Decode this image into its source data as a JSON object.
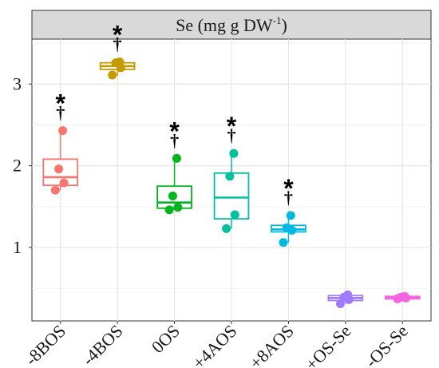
{
  "chart_data": {
    "type": "box",
    "title": "Se (mg g DW-1)",
    "title_main": "Se (mg g DW",
    "title_sup": "-1",
    "title_end": ")",
    "xlabel": "",
    "ylabel": "",
    "ylim": [
      0.1,
      3.55
    ],
    "yticks": [
      1,
      2,
      3
    ],
    "grid": true,
    "legend": "none",
    "significance_symbols": {
      "star": "*",
      "dagger": "†"
    },
    "categories": [
      "-8BOS",
      "-4BOS",
      "0OS",
      "+4AOS",
      "+8AOS",
      "+OS-Se",
      "-OS-Se"
    ],
    "series": [
      {
        "category": "-8BOS",
        "color": "#F8766D",
        "q1": 1.76,
        "median": 1.86,
        "q3": 2.08,
        "whisker_low": 1.7,
        "whisker_high": 2.43,
        "points": [
          1.7,
          1.79,
          1.96,
          2.43
        ],
        "star": true,
        "dagger": true
      },
      {
        "category": "-4BOS",
        "color": "#C49A00",
        "q1": 3.18,
        "median": 3.22,
        "q3": 3.26,
        "whisker_low": 3.1,
        "whisker_high": 3.27,
        "points": [
          3.11,
          3.2,
          3.26,
          3.27
        ],
        "star": true,
        "dagger": true
      },
      {
        "category": "0OS",
        "color": "#00B520",
        "q1": 1.48,
        "median": 1.55,
        "q3": 1.75,
        "whisker_low": 1.46,
        "whisker_high": 2.09,
        "points": [
          1.46,
          1.49,
          1.63,
          2.09
        ],
        "star": true,
        "dagger": true
      },
      {
        "category": "+4AOS",
        "color": "#00C19F",
        "q1": 1.35,
        "median": 1.61,
        "q3": 1.91,
        "whisker_low": 1.23,
        "whisker_high": 2.15,
        "points": [
          1.23,
          1.4,
          1.87,
          2.15
        ],
        "star": true,
        "dagger": true
      },
      {
        "category": "+8AOS",
        "color": "#00B9E3",
        "q1": 1.19,
        "median": 1.22,
        "q3": 1.27,
        "whisker_low": 1.06,
        "whisker_high": 1.39,
        "points": [
          1.06,
          1.21,
          1.24,
          1.39
        ],
        "star": true,
        "dagger": true
      },
      {
        "category": "+OS-Se",
        "color": "#9E7BFF",
        "q1": 0.35,
        "median": 0.38,
        "q3": 0.41,
        "whisker_low": 0.31,
        "whisker_high": 0.42,
        "points": [
          0.31,
          0.36,
          0.39,
          0.42
        ],
        "star": false,
        "dagger": false
      },
      {
        "category": "-OS-Se",
        "color": "#F564E3",
        "q1": 0.37,
        "median": 0.38,
        "q3": 0.4,
        "whisker_low": 0.37,
        "whisker_high": 0.4,
        "points": [
          0.37,
          0.38,
          0.39,
          0.4
        ],
        "star": false,
        "dagger": false
      }
    ]
  }
}
